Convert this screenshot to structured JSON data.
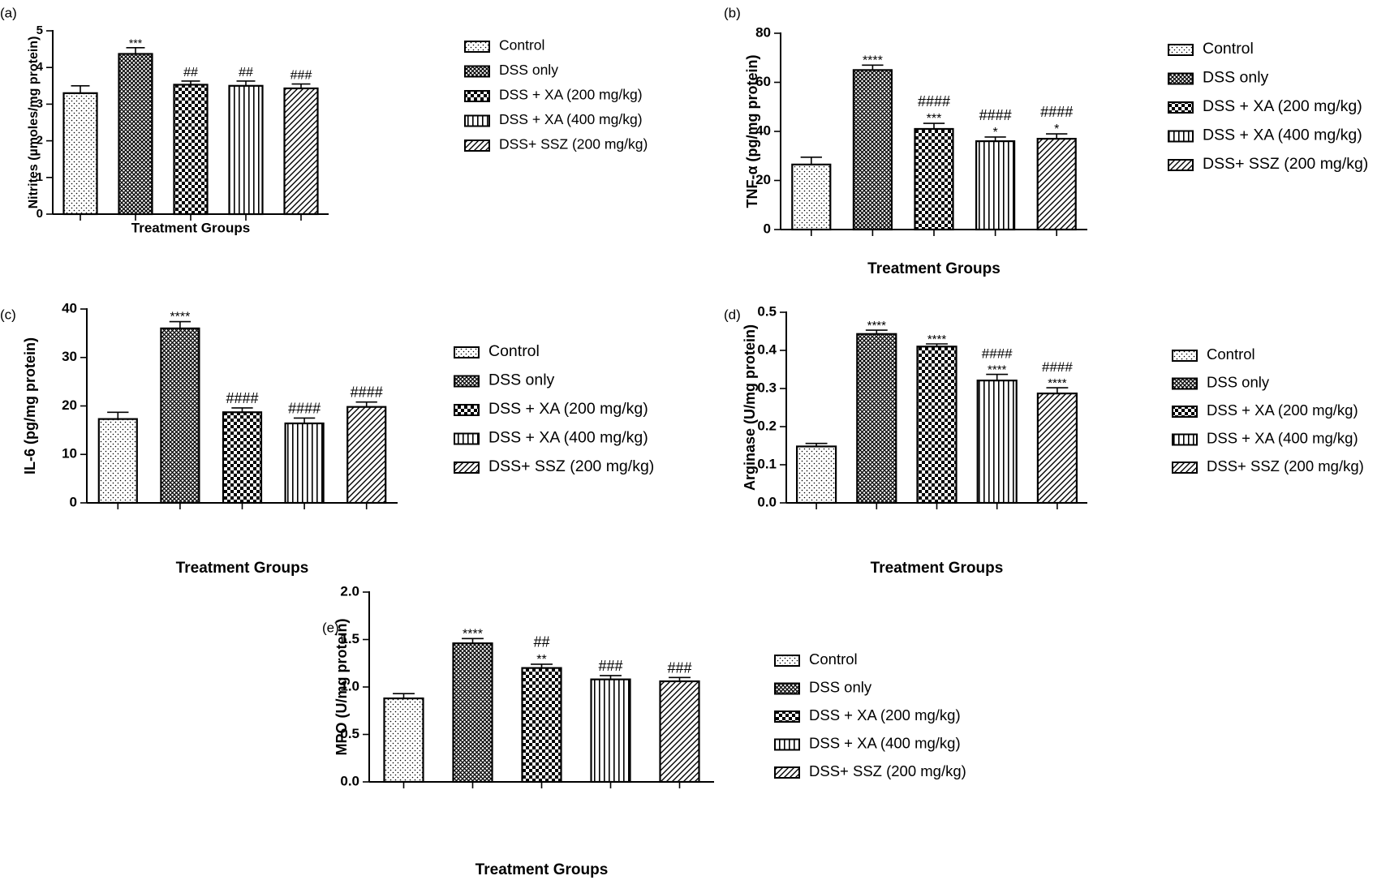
{
  "legend": [
    {
      "label": "Control",
      "pattern": "dots"
    },
    {
      "label": "DSS only",
      "pattern": "cross-fine"
    },
    {
      "label": "DSS + XA (200 mg/kg)",
      "pattern": "checker"
    },
    {
      "label": "DSS + XA (400 mg/kg)",
      "pattern": "vstripes"
    },
    {
      "label": "DSS+ SSZ (200 mg/kg)",
      "pattern": "diagonal"
    }
  ],
  "colors": {
    "bar_stroke": "#000000",
    "text": "#000000",
    "background": "#ffffff"
  },
  "chart_data": [
    {
      "panel_label": "(a)",
      "type": "bar",
      "ylabel": "Nitrites (µmoles/mg protein)",
      "xlabel": "Treatment Groups",
      "ylim": [
        0,
        5
      ],
      "yticks": [
        "0",
        "1",
        "2",
        "3",
        "4",
        "5"
      ],
      "categories": [
        "Control",
        "DSS only",
        "DSS + XA (200 mg/kg)",
        "DSS + XA (400 mg/kg)",
        "DSS+ SSZ (200 mg/kg)"
      ],
      "values": [
        3.3,
        4.37,
        3.53,
        3.5,
        3.43
      ],
      "errors": [
        0.2,
        0.17,
        0.1,
        0.13,
        0.12
      ],
      "annotations": [
        [],
        [
          "***"
        ],
        [
          "##"
        ],
        [
          "##"
        ],
        [
          "###"
        ]
      ],
      "grid": false,
      "legend_position": "right"
    },
    {
      "panel_label": "(b)",
      "type": "bar",
      "ylabel": "TNF-α (pg/mg protein)",
      "xlabel": "Treatment Groups",
      "ylim": [
        0,
        80
      ],
      "yticks": [
        "0",
        "20",
        "40",
        "60",
        "80"
      ],
      "categories": [
        "Control",
        "DSS only",
        "DSS + XA (200 mg/kg)",
        "DSS + XA (400 mg/kg)",
        "DSS+ SSZ (200 mg/kg)"
      ],
      "values": [
        26.5,
        65,
        41,
        36,
        37
      ],
      "errors": [
        3,
        2,
        2.3,
        1.7,
        2
      ],
      "annotations": [
        [],
        [
          "****"
        ],
        [
          "####",
          "***"
        ],
        [
          "####",
          "*"
        ],
        [
          "####",
          "*"
        ]
      ],
      "grid": false,
      "legend_position": "right"
    },
    {
      "panel_label": "(c)",
      "type": "bar",
      "ylabel": "IL-6 (pg/mg protein)",
      "xlabel": "Treatment Groups",
      "ylim": [
        0,
        40
      ],
      "yticks": [
        "0",
        "10",
        "20",
        "30",
        "40"
      ],
      "categories": [
        "Control",
        "DSS only",
        "DSS + XA (200 mg/kg)",
        "DSS + XA (400 mg/kg)",
        "DSS+ SSZ (200 mg/kg)"
      ],
      "values": [
        17.3,
        36,
        18.7,
        16.4,
        19.8
      ],
      "errors": [
        1.4,
        1.4,
        0.9,
        1.1,
        1
      ],
      "annotations": [
        [],
        [
          "****"
        ],
        [
          "####"
        ],
        [
          "####"
        ],
        [
          "####"
        ]
      ],
      "grid": false,
      "legend_position": "right"
    },
    {
      "panel_label": "(d)",
      "type": "bar",
      "ylabel": "Arginase (U/mg protein)",
      "xlabel": "Treatment Groups",
      "ylim": [
        0,
        0.5
      ],
      "yticks": [
        "0.0",
        "0.1",
        "0.2",
        "0.3",
        "0.4",
        "0.5"
      ],
      "categories": [
        "Control",
        "DSS only",
        "DSS + XA (200 mg/kg)",
        "DSS + XA (400 mg/kg)",
        "DSS+ SSZ (200 mg/kg)"
      ],
      "values": [
        0.148,
        0.443,
        0.41,
        0.321,
        0.287
      ],
      "errors": [
        0.008,
        0.01,
        0.007,
        0.016,
        0.015
      ],
      "annotations": [
        [],
        [
          "****"
        ],
        [
          "****"
        ],
        [
          "####",
          "****"
        ],
        [
          "####",
          "****"
        ]
      ],
      "grid": false,
      "legend_position": "right"
    },
    {
      "panel_label": "(e)",
      "type": "bar",
      "ylabel": "MPO (U/mg protein)",
      "xlabel": "Treatment Groups",
      "ylim": [
        0,
        2
      ],
      "yticks": [
        "0.0",
        "0.5",
        "1.0",
        "1.5",
        "2.0"
      ],
      "categories": [
        "Control",
        "DSS only",
        "DSS + XA (200 mg/kg)",
        "DSS + XA (400 mg/kg)",
        "DSS+ SSZ (200 mg/kg)"
      ],
      "values": [
        0.88,
        1.46,
        1.2,
        1.08,
        1.06
      ],
      "errors": [
        0.05,
        0.05,
        0.04,
        0.04,
        0.04
      ],
      "annotations": [
        [],
        [
          "****"
        ],
        [
          "##",
          "**"
        ],
        [
          "###"
        ],
        [
          "###"
        ]
      ],
      "grid": false,
      "legend_position": "right"
    }
  ]
}
